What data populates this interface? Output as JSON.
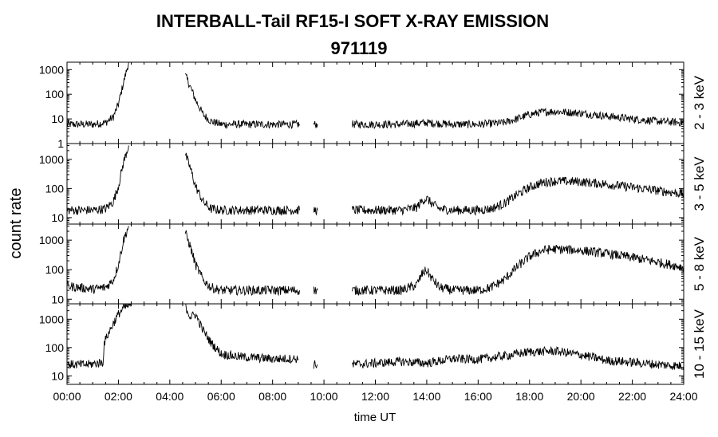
{
  "title": "INTERBALL-Tail RF15-I SOFT X-RAY EMISSION",
  "subtitle": "971119",
  "ylabel": "count rate",
  "xlabel": "time UT",
  "colors": {
    "line": "#000000",
    "axis": "#000000",
    "background": "#ffffff"
  },
  "chart_data": {
    "type": "line",
    "x_unit": "hours UT",
    "x_ticks": [
      "00:00",
      "02:00",
      "04:00",
      "06:00",
      "08:00",
      "10:00",
      "12:00",
      "14:00",
      "16:00",
      "18:00",
      "20:00",
      "22:00",
      "24:00"
    ],
    "xlim": [
      0,
      24
    ],
    "y_scale": "log",
    "panels": [
      {
        "name": "2 - 3 keV",
        "ylim": [
          1,
          2000
        ],
        "y_ticks": [
          1,
          10,
          100,
          1000
        ],
        "y_tick_labels": [
          "1",
          "10",
          "100",
          "1000"
        ],
        "series": [
          {
            "x": [
              0,
              1.0,
              1.5,
              1.8,
              2.0,
              2.2,
              2.4
            ],
            "y": [
              6,
              6,
              7,
              12,
              40,
              300,
              2000
            ]
          },
          {
            "x": [
              4.6,
              4.8,
              5.0,
              5.3,
              5.6,
              6.0,
              7.0,
              8.0,
              9.05
            ],
            "y": [
              600,
              200,
              60,
              15,
              8,
              6,
              6,
              6,
              6
            ]
          },
          {
            "x": [
              9.6,
              9.75
            ],
            "y": [
              6,
              6
            ]
          },
          {
            "x": [
              11.1,
              12.0,
              13.0,
              14.0,
              15.0,
              16.0,
              17.0,
              17.5,
              18.0,
              18.5,
              19.0,
              20.0,
              21.0,
              22.0,
              23.0,
              24.0
            ],
            "y": [
              6,
              6,
              6,
              7,
              6,
              6,
              7,
              10,
              15,
              19,
              20,
              17,
              13,
              10,
              8,
              7
            ]
          }
        ]
      },
      {
        "name": "3 - 5 keV",
        "ylim": [
          6,
          3500
        ],
        "y_ticks": [
          10,
          100,
          1000
        ],
        "y_tick_labels": [
          "10",
          "100",
          "1000"
        ],
        "series": [
          {
            "x": [
              0,
              1.0,
              1.5,
              1.8,
              2.0,
              2.2,
              2.4
            ],
            "y": [
              18,
              18,
              20,
              35,
              120,
              800,
              3000
            ]
          },
          {
            "x": [
              4.6,
              4.8,
              5.0,
              5.3,
              5.6,
              6.0,
              7.0,
              8.0,
              9.05
            ],
            "y": [
              1500,
              500,
              120,
              35,
              20,
              18,
              18,
              18,
              18
            ]
          },
          {
            "x": [
              9.6,
              9.75
            ],
            "y": [
              18,
              18
            ]
          },
          {
            "x": [
              11.1,
              12.0,
              13.0,
              13.6,
              13.85,
              14.0,
              14.2,
              14.5,
              15.0,
              16.0,
              16.5,
              17.0,
              17.5,
              18.0,
              18.5,
              19.0,
              20.0,
              21.0,
              22.0,
              23.0,
              24.0
            ],
            "y": [
              18,
              18,
              18,
              22,
              40,
              45,
              30,
              20,
              18,
              18,
              20,
              30,
              60,
              110,
              160,
              180,
              170,
              140,
              110,
              85,
              65
            ]
          }
        ]
      },
      {
        "name": "5 - 8 keV",
        "ylim": [
          7,
          3500
        ],
        "y_ticks": [
          10,
          100,
          1000
        ],
        "y_tick_labels": [
          "10",
          "100",
          "1000"
        ],
        "series": [
          {
            "x": [
              0,
              1.0,
              1.5,
              1.8,
              2.0,
              2.2,
              2.4
            ],
            "y": [
              28,
              22,
              25,
              45,
              150,
              1000,
              3000
            ]
          },
          {
            "x": [
              4.6,
              4.8,
              5.0,
              5.3,
              5.6,
              6.0,
              7.0,
              8.0,
              9.05
            ],
            "y": [
              1800,
              600,
              150,
              45,
              25,
              20,
              20,
              20,
              20
            ]
          },
          {
            "x": [
              9.6,
              9.75
            ],
            "y": [
              20,
              20
            ]
          },
          {
            "x": [
              11.1,
              12.0,
              13.0,
              13.6,
              13.85,
              14.0,
              14.2,
              14.5,
              15.0,
              16.0,
              16.5,
              17.0,
              17.5,
              18.0,
              18.5,
              19.0,
              20.0,
              21.0,
              22.0,
              23.0,
              24.0
            ],
            "y": [
              20,
              20,
              20,
              30,
              80,
              95,
              50,
              25,
              20,
              20,
              25,
              45,
              120,
              280,
              450,
              500,
              450,
              350,
              260,
              180,
              120
            ]
          }
        ]
      },
      {
        "name": "10 - 15 keV",
        "ylim": [
          5,
          3500
        ],
        "y_ticks": [
          10,
          100,
          1000
        ],
        "y_tick_labels": [
          "10",
          "100",
          "1000"
        ],
        "series": [
          {
            "x": [
              0,
              0.8,
              1.2,
              1.4,
              1.45,
              1.6,
              1.8,
              2.0,
              2.2,
              2.4,
              2.5
            ],
            "y": [
              25,
              25,
              28,
              30,
              150,
              300,
              700,
              1500,
              2500,
              3000,
              3500
            ]
          },
          {
            "x": [
              4.6,
              4.8,
              5.0,
              5.3,
              5.6,
              6.0,
              6.5,
              7.0,
              8.0,
              9.0
            ],
            "y": [
              3000,
              1200,
              1500,
              400,
              150,
              60,
              50,
              45,
              40,
              40
            ]
          },
          {
            "x": [
              9.6,
              9.75
            ],
            "y": [
              25,
              25
            ]
          },
          {
            "x": [
              11.1,
              12.0,
              13.0,
              14.0,
              15.0,
              16.0,
              17.0,
              18.0,
              19.0,
              20.0,
              21.0,
              22.0,
              23.0,
              24.0
            ],
            "y": [
              25,
              28,
              32,
              28,
              40,
              38,
              50,
              70,
              75,
              55,
              35,
              30,
              25,
              22
            ]
          }
        ]
      }
    ]
  }
}
